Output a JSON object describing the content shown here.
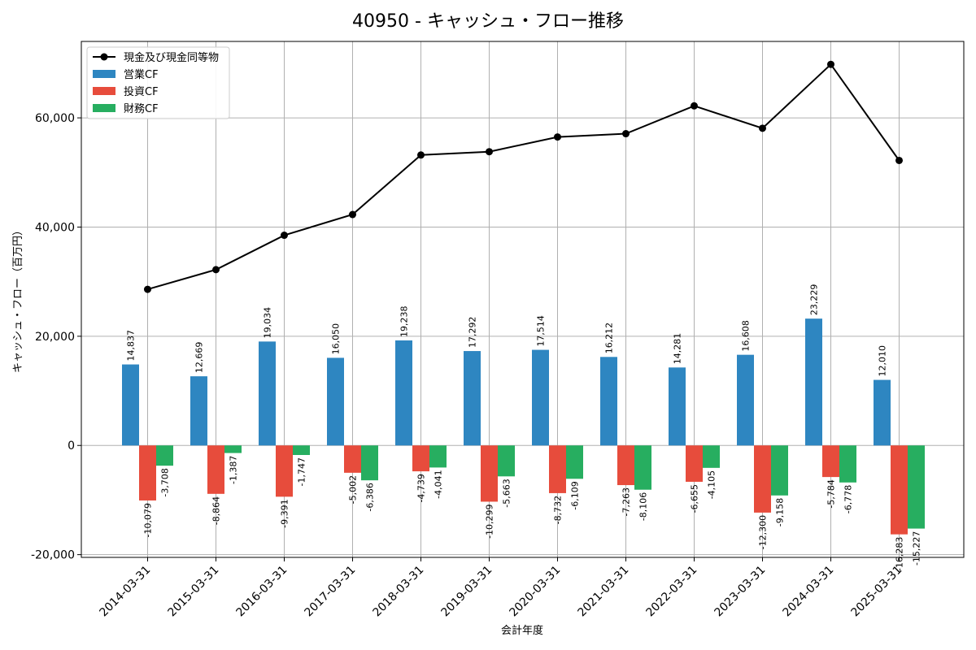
{
  "chart_data": {
    "type": "bar",
    "title": "40950 - キャッシュ・フロー推移",
    "xlabel": "会計年度",
    "ylabel": "キャッシュ・フロー（百万円）",
    "ylim": [
      -20500,
      74000
    ],
    "yticks": [
      -20000,
      0,
      20000,
      40000,
      60000
    ],
    "ytick_labels": [
      "-20,000",
      "0",
      "20,000",
      "40,000",
      "60,000"
    ],
    "grid": true,
    "legend_position": "top-left",
    "categories": [
      "2014-03-31",
      "2015-03-31",
      "2016-03-31",
      "2017-03-31",
      "2018-03-31",
      "2019-03-31",
      "2020-03-31",
      "2021-03-31",
      "2022-03-31",
      "2023-03-31",
      "2024-03-31",
      "2025-03-31"
    ],
    "series": [
      {
        "name": "営業CF",
        "kind": "bar",
        "color": "#2e86c1",
        "values": [
          14837,
          12669,
          19034,
          16050,
          19238,
          17292,
          17514,
          16212,
          14281,
          16608,
          23229,
          12010
        ],
        "labels": [
          "14,837",
          "12,669",
          "19,034",
          "16,050",
          "19,238",
          "17,292",
          "17,514",
          "16,212",
          "14,281",
          "16,608",
          "23,229",
          "12,010"
        ]
      },
      {
        "name": "投資CF",
        "kind": "bar",
        "color": "#e74c3c",
        "values": [
          -10079,
          -8864,
          -9391,
          -5002,
          -4739,
          -10299,
          -8732,
          -7263,
          -6655,
          -12300,
          -5784,
          -16283
        ],
        "labels": [
          "-10,079",
          "-8,864",
          "-9,391",
          "-5,002",
          "-4,739",
          "-10,299",
          "-8,732",
          "-7,263",
          "-6,655",
          "-12,300",
          "-5,784",
          "-16,283"
        ]
      },
      {
        "name": "財務CF",
        "kind": "bar",
        "color": "#27ae60",
        "values": [
          -3708,
          -1387,
          -1747,
          -6386,
          -4041,
          -5663,
          -6109,
          -8106,
          -4105,
          -9158,
          -6778,
          -15227
        ],
        "labels": [
          "-3,708",
          "-1,387",
          "-1,747",
          "-6,386",
          "-4,041",
          "-5,663",
          "-6,109",
          "-8,106",
          "-4,105",
          "-9,158",
          "-6,778",
          "-15,227"
        ]
      },
      {
        "name": "現金及び現金同等物",
        "kind": "line",
        "color": "#000000",
        "values": [
          28600,
          32200,
          38500,
          42300,
          53200,
          53800,
          56500,
          57100,
          62200,
          58100,
          69800,
          52200
        ]
      }
    ]
  }
}
